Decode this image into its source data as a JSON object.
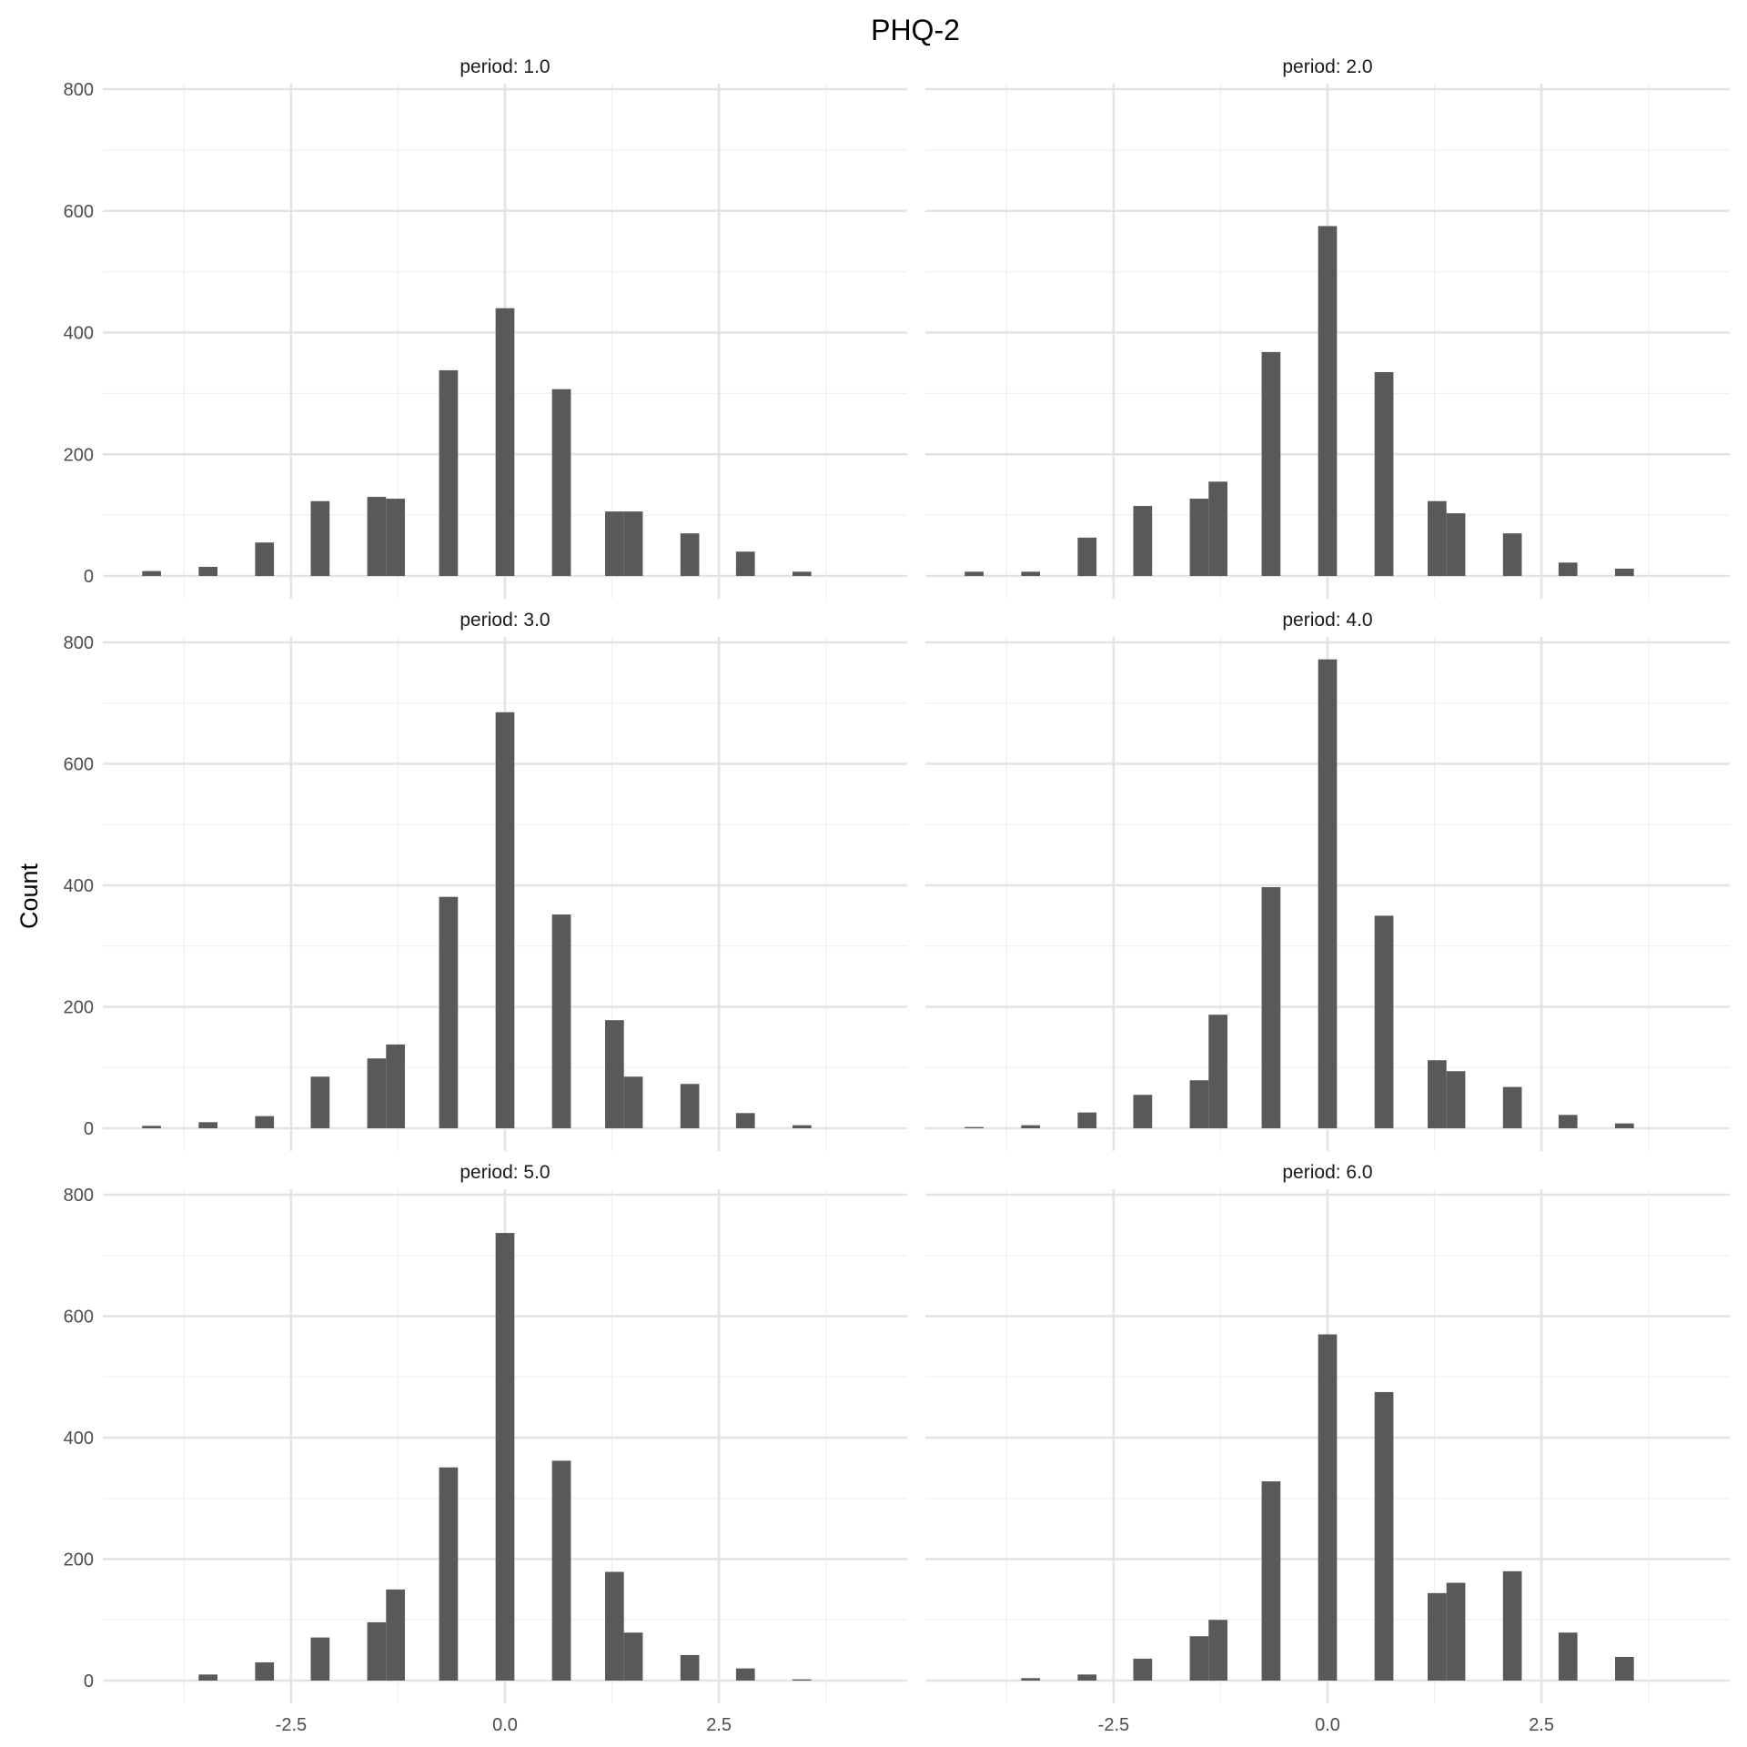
{
  "chart_data": {
    "type": "bar",
    "title": "PHQ-2",
    "xlabel": "",
    "ylabel": "Count",
    "xlim": [
      -4.7,
      4.7
    ],
    "ylim": [
      0,
      800
    ],
    "yticks": [
      0,
      200,
      400,
      600,
      800
    ],
    "xticks": [
      -2.5,
      0.0,
      2.5
    ],
    "ytick_labels": [
      "0",
      "200",
      "400",
      "600",
      "800"
    ],
    "xtick_labels": [
      "-2.5",
      "0.0",
      "2.5"
    ],
    "bin_width": 0.22,
    "grid": true,
    "bar_color": "#595959",
    "facet_layout": {
      "rows": 3,
      "cols": 2
    },
    "x": [
      -4.13,
      -3.47,
      -2.81,
      -2.16,
      -1.5,
      -1.28,
      -0.66,
      0.0,
      0.66,
      1.28,
      1.5,
      2.16,
      2.81,
      3.47
    ],
    "facets": [
      {
        "label": "period: 1.0",
        "values": [
          8,
          15,
          55,
          123,
          130,
          127,
          338,
          440,
          307,
          106,
          106,
          70,
          40,
          7
        ]
      },
      {
        "label": "period: 2.0",
        "values": [
          7,
          7,
          63,
          115,
          127,
          155,
          368,
          575,
          335,
          123,
          103,
          70,
          22,
          12
        ]
      },
      {
        "label": "period: 3.0",
        "values": [
          4,
          10,
          20,
          85,
          115,
          138,
          381,
          685,
          352,
          178,
          85,
          73,
          25,
          5
        ]
      },
      {
        "label": "period: 4.0",
        "values": [
          2,
          5,
          26,
          55,
          79,
          187,
          397,
          772,
          350,
          112,
          94,
          68,
          22,
          8
        ]
      },
      {
        "label": "period: 5.0",
        "values": [
          0,
          10,
          30,
          71,
          96,
          150,
          351,
          737,
          362,
          179,
          79,
          42,
          20,
          2
        ]
      },
      {
        "label": "period: 6.0",
        "values": [
          0,
          4,
          10,
          36,
          73,
          100,
          328,
          570,
          475,
          144,
          161,
          180,
          79,
          39
        ]
      }
    ]
  }
}
